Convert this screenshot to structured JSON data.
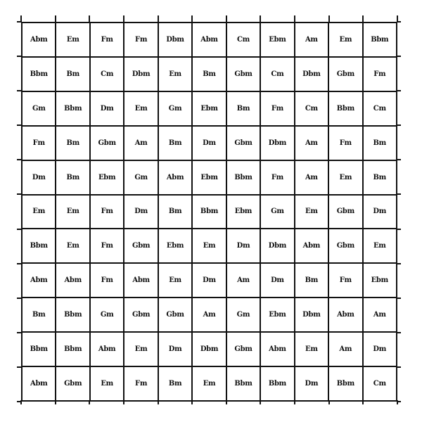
{
  "grid": {
    "rows": [
      [
        "Abm",
        "Em",
        "Fm",
        "Fm",
        "Dbm",
        "Abm",
        "Cm",
        "Ebm",
        "Am",
        "Em",
        "Bbm"
      ],
      [
        "Bbm",
        "Bm",
        "Cm",
        "Dbm",
        "Em",
        "Bm",
        "Gbm",
        "Cm",
        "Dbm",
        "Gbm",
        "Fm"
      ],
      [
        "Gm",
        "Bbm",
        "Dm",
        "Em",
        "Gm",
        "Ebm",
        "Bm",
        "Fm",
        "Cm",
        "Bbm",
        "Cm"
      ],
      [
        "Fm",
        "Bm",
        "Gbm",
        "Am",
        "Bm",
        "Dm",
        "Gbm",
        "Dbm",
        "Am",
        "Fm",
        "Bm"
      ],
      [
        "Dm",
        "Bm",
        "Ebm",
        "Gm",
        "Abm",
        "Ebm",
        "Bbm",
        "Fm",
        "Am",
        "Em",
        "Bm"
      ],
      [
        "Em",
        "Em",
        "Fm",
        "Dm",
        "Bm",
        "Bbm",
        "Ebm",
        "Gm",
        "Em",
        "Gbm",
        "Dm"
      ],
      [
        "Bbm",
        "Em",
        "Fm",
        "Gbm",
        "Ebm",
        "Em",
        "Dm",
        "Dbm",
        "Abm",
        "Gbm",
        "Em"
      ],
      [
        "Abm",
        "Abm",
        "Fm",
        "Abm",
        "Em",
        "Dm",
        "Am",
        "Dm",
        "Bm",
        "Fm",
        "Ebm"
      ],
      [
        "Bm",
        "Bbm",
        "Gm",
        "Gbm",
        "Gbm",
        "Am",
        "Gm",
        "Ebm",
        "Dbm",
        "Abm",
        "Am"
      ],
      [
        "Bbm",
        "Bbm",
        "Abm",
        "Em",
        "Dm",
        "Dbm",
        "Gbm",
        "Abm",
        "Em",
        "Am",
        "Dm"
      ],
      [
        "Abm",
        "Gbm",
        "Em",
        "Fm",
        "Bm",
        "Em",
        "Bbm",
        "Bbm",
        "Dm",
        "Bbm",
        "Cm"
      ]
    ]
  }
}
